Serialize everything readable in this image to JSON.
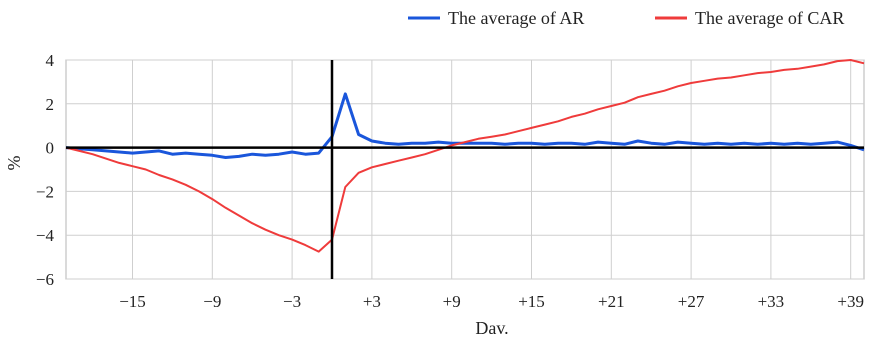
{
  "chart_data": {
    "type": "line",
    "title": "",
    "xlabel": "Dav.",
    "ylabel": "%",
    "xlim": [
      -20,
      40
    ],
    "ylim": [
      -6,
      4
    ],
    "x_ticks": [
      -15,
      -9,
      -3,
      3,
      9,
      15,
      21,
      27,
      33,
      39
    ],
    "x_tick_labels": [
      "−15",
      "−9",
      "−3",
      "+3",
      "+9",
      "+15",
      "+21",
      "+27",
      "+33",
      "+39"
    ],
    "y_ticks": [
      -6,
      -4,
      -2,
      0,
      2,
      4
    ],
    "y_tick_labels": [
      "−6",
      "−4",
      "−2",
      "0",
      "2",
      "4"
    ],
    "grid": true,
    "legend_position": "top-right",
    "event_day": 0,
    "x": [
      -20,
      -19,
      -18,
      -17,
      -16,
      -15,
      -14,
      -13,
      -12,
      -11,
      -10,
      -9,
      -8,
      -7,
      -6,
      -5,
      -4,
      -3,
      -2,
      -1,
      0,
      1,
      2,
      3,
      4,
      5,
      6,
      7,
      8,
      9,
      10,
      11,
      12,
      13,
      14,
      15,
      16,
      17,
      18,
      19,
      20,
      21,
      22,
      23,
      24,
      25,
      26,
      27,
      28,
      29,
      30,
      31,
      32,
      33,
      34,
      35,
      36,
      37,
      38,
      39,
      40
    ],
    "series": [
      {
        "name": "The average of AR",
        "color": "#1a56db",
        "values": [
          0,
          -0.05,
          -0.1,
          -0.15,
          -0.2,
          -0.25,
          -0.2,
          -0.15,
          -0.3,
          -0.25,
          -0.3,
          -0.35,
          -0.45,
          -0.4,
          -0.3,
          -0.35,
          -0.3,
          -0.2,
          -0.3,
          -0.25,
          0.5,
          2.45,
          0.6,
          0.3,
          0.2,
          0.15,
          0.2,
          0.2,
          0.25,
          0.2,
          0.2,
          0.2,
          0.2,
          0.15,
          0.2,
          0.2,
          0.15,
          0.2,
          0.2,
          0.15,
          0.25,
          0.2,
          0.15,
          0.3,
          0.2,
          0.15,
          0.25,
          0.2,
          0.15,
          0.2,
          0.15,
          0.2,
          0.15,
          0.2,
          0.15,
          0.2,
          0.15,
          0.2,
          0.25,
          0.1,
          -0.1
        ]
      },
      {
        "name": "The average of CAR",
        "color": "#ef3b3b",
        "values": [
          0,
          -0.15,
          -0.3,
          -0.5,
          -0.7,
          -0.85,
          -1.0,
          -1.25,
          -1.45,
          -1.7,
          -2.0,
          -2.35,
          -2.75,
          -3.1,
          -3.45,
          -3.75,
          -4.0,
          -4.2,
          -4.45,
          -4.75,
          -4.2,
          -1.8,
          -1.15,
          -0.9,
          -0.75,
          -0.6,
          -0.45,
          -0.3,
          -0.1,
          0.1,
          0.25,
          0.4,
          0.5,
          0.6,
          0.75,
          0.9,
          1.05,
          1.2,
          1.4,
          1.55,
          1.75,
          1.9,
          2.05,
          2.3,
          2.45,
          2.6,
          2.8,
          2.95,
          3.05,
          3.15,
          3.2,
          3.3,
          3.4,
          3.45,
          3.55,
          3.6,
          3.7,
          3.8,
          3.95,
          4.0,
          3.85
        ]
      }
    ]
  }
}
